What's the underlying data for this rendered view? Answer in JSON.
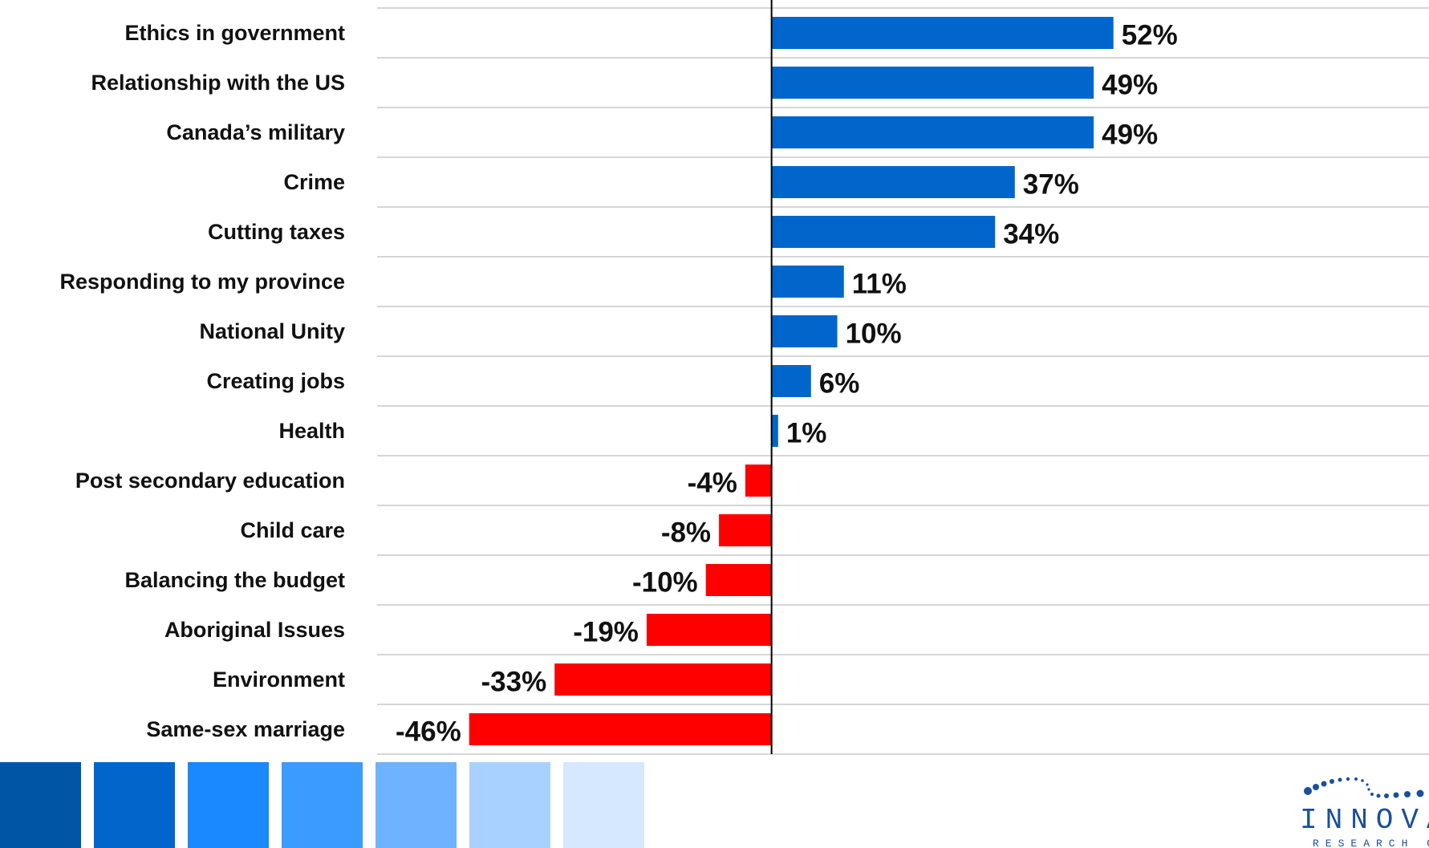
{
  "chart_data": {
    "type": "bar",
    "orientation": "horizontal",
    "categories": [
      "Ethics in government",
      "Relationship with the US",
      "Canada’s military",
      "Crime",
      "Cutting taxes",
      "Responding to my province",
      "National Unity",
      "Creating jobs",
      "Health",
      "Post secondary education",
      "Child care",
      "Balancing the budget",
      "Aboriginal Issues",
      "Environment",
      "Same-sex marriage"
    ],
    "values": [
      52,
      49,
      49,
      37,
      34,
      11,
      10,
      6,
      1,
      -4,
      -8,
      -10,
      -19,
      -33,
      -46
    ],
    "value_labels": [
      "52%",
      "49%",
      "49%",
      "37%",
      "34%",
      "11%",
      "10%",
      "6%",
      "1%",
      "-4%",
      "-8%",
      "-10%",
      "-19%",
      "-33%",
      "-46%"
    ],
    "xlim": [
      -60,
      100
    ],
    "grid": "horizontal",
    "colors": {
      "positive": "#0066cc",
      "negative": "#ff0000"
    }
  },
  "footer": {
    "swatch_colors": [
      "#0055a5",
      "#0066cc",
      "#1a88ff",
      "#3c9bff",
      "#6db3ff",
      "#a9d1ff",
      "#d6e8ff"
    ],
    "logo_text": "INNOVATIVE",
    "logo_subtext": "RESEARCH GROUP",
    "logo_color": "#1a4f9c"
  }
}
